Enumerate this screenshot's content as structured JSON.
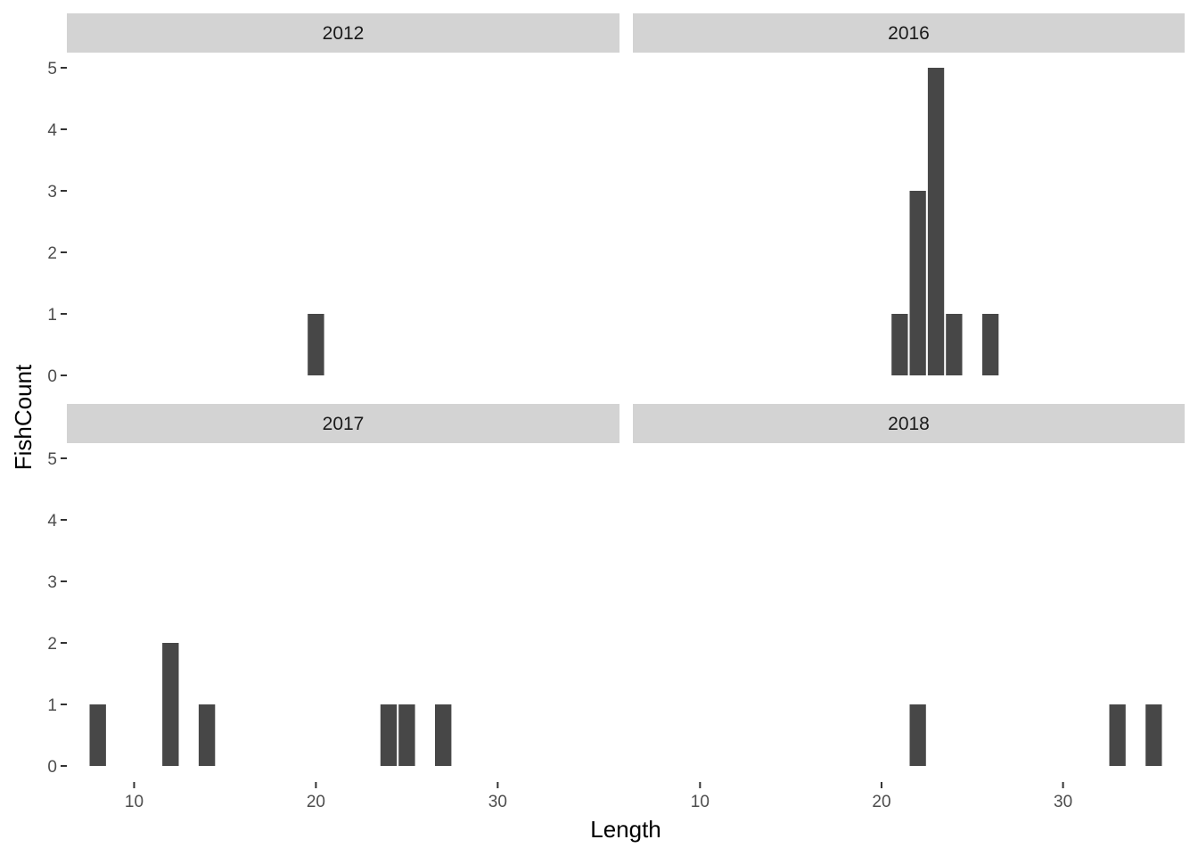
{
  "chart_data": {
    "type": "bar",
    "xlabel": "Length",
    "ylabel": "FishCount",
    "xlim": [
      6.3,
      36.7
    ],
    "ylim": [
      0,
      5.25
    ],
    "xticks": [
      10,
      20,
      30
    ],
    "yticks": [
      0,
      1,
      2,
      3,
      4,
      5
    ],
    "bar_width": 0.9,
    "bar_color": "#474747",
    "strip_color": "#d3d3d3",
    "grid": false,
    "facets": [
      {
        "label": "2012",
        "x": [
          20
        ],
        "values": [
          1
        ]
      },
      {
        "label": "2016",
        "x": [
          21,
          22,
          23,
          24,
          26
        ],
        "values": [
          1,
          3,
          5,
          1,
          1
        ]
      },
      {
        "label": "2017",
        "x": [
          8,
          12,
          14,
          24,
          25,
          27
        ],
        "values": [
          1,
          2,
          1,
          1,
          1,
          1
        ]
      },
      {
        "label": "2018",
        "x": [
          22,
          33,
          35
        ],
        "values": [
          1,
          1,
          1
        ]
      }
    ]
  }
}
